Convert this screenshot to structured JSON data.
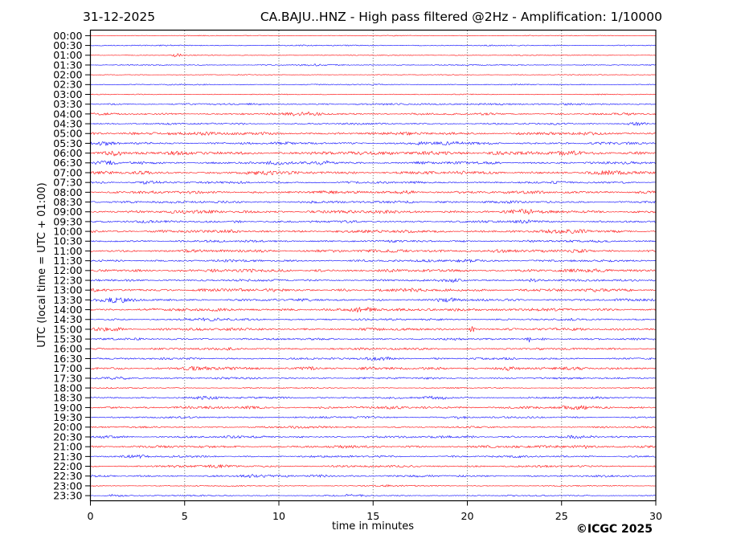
{
  "header": {
    "date": "31-12-2025",
    "title": "CA.BAJU..HNZ - High pass filtered @2Hz - Amplification: 1/10000"
  },
  "footer": {
    "copyright": "©ICGC 2025"
  },
  "chart_data": {
    "type": "line",
    "variant": "helicorder-seismogram-day-plot",
    "title": "CA.BAJU..HNZ - High pass filtered @2Hz - Amplification: 1/10000",
    "date": "31-12-2025",
    "xlabel": "time in minutes",
    "ylabel": "UTC (local time = UTC + 01:00)",
    "xlim": [
      0,
      30
    ],
    "x_ticks": [
      0,
      5,
      10,
      15,
      20,
      25,
      30
    ],
    "row_interval_minutes": 30,
    "grid": {
      "vertical_dotted_at": [
        5,
        10,
        15,
        20,
        25
      ],
      "color": "#555555"
    },
    "trace_colors": {
      "red": "#ff0000",
      "blue": "#0000ff"
    },
    "rows": [
      {
        "label": "00:00",
        "color": "red",
        "amp": 0.35,
        "events": []
      },
      {
        "label": "00:30",
        "color": "blue",
        "amp": 0.5,
        "events": []
      },
      {
        "label": "01:00",
        "color": "red",
        "amp": 0.4,
        "events": [
          {
            "t": 4.6,
            "a": 2.2,
            "w": 0.2
          }
        ]
      },
      {
        "label": "01:30",
        "color": "blue",
        "amp": 0.5,
        "events": [
          {
            "t": 11.8,
            "a": 1.4,
            "w": 0.4
          }
        ]
      },
      {
        "label": "02:00",
        "color": "red",
        "amp": 0.35,
        "events": []
      },
      {
        "label": "02:30",
        "color": "blue",
        "amp": 0.5,
        "events": []
      },
      {
        "label": "03:00",
        "color": "red",
        "amp": 0.4,
        "events": []
      },
      {
        "label": "03:30",
        "color": "blue",
        "amp": 0.8,
        "events": [
          {
            "t": 21.0,
            "a": 1.6,
            "w": 0.6
          }
        ]
      },
      {
        "label": "04:00",
        "color": "red",
        "amp": 0.9,
        "events": [
          {
            "t": 11.4,
            "a": 1.8,
            "w": 0.7
          }
        ]
      },
      {
        "label": "04:30",
        "color": "blue",
        "amp": 0.8,
        "events": [
          {
            "t": 29.0,
            "a": 2.6,
            "w": 0.35
          }
        ]
      },
      {
        "label": "05:00",
        "color": "red",
        "amp": 1.3,
        "events": [
          {
            "t": 4.0,
            "a": 1.2,
            "w": 1.2
          }
        ]
      },
      {
        "label": "05:30",
        "color": "blue",
        "amp": 1.1,
        "events": [
          {
            "t": 0.8,
            "a": 1.8,
            "w": 0.4
          },
          {
            "t": 18.5,
            "a": 1.6,
            "w": 0.8
          }
        ]
      },
      {
        "label": "06:00",
        "color": "red",
        "amp": 1.5,
        "events": [
          {
            "t": 1.2,
            "a": 2.2,
            "w": 0.5
          },
          {
            "t": 18.0,
            "a": 1.6,
            "w": 1.0
          },
          {
            "t": 25.8,
            "a": 1.6,
            "w": 0.8
          }
        ]
      },
      {
        "label": "06:30",
        "color": "blue",
        "amp": 1.2,
        "events": [
          {
            "t": 0.9,
            "a": 2.0,
            "w": 0.3
          },
          {
            "t": 12.6,
            "a": 2.4,
            "w": 0.5
          },
          {
            "t": 9.6,
            "a": 1.4,
            "w": 0.4
          }
        ]
      },
      {
        "label": "07:00",
        "color": "red",
        "amp": 1.4,
        "events": [
          {
            "t": 9.0,
            "a": 1.5,
            "w": 0.8
          },
          {
            "t": 28.0,
            "a": 1.6,
            "w": 0.6
          }
        ]
      },
      {
        "label": "07:30",
        "color": "blue",
        "amp": 1.0,
        "events": [
          {
            "t": 3.1,
            "a": 1.8,
            "w": 0.5
          }
        ]
      },
      {
        "label": "08:00",
        "color": "red",
        "amp": 1.3,
        "events": [
          {
            "t": 16.9,
            "a": 2.8,
            "w": 0.25
          }
        ]
      },
      {
        "label": "08:30",
        "color": "blue",
        "amp": 1.0,
        "events": [
          {
            "t": 7.0,
            "a": 1.5,
            "w": 0.5
          },
          {
            "t": 16.5,
            "a": 1.6,
            "w": 0.5
          }
        ]
      },
      {
        "label": "09:00",
        "color": "red",
        "amp": 1.4,
        "events": [
          {
            "t": 23.2,
            "a": 1.4,
            "w": 0.8
          }
        ]
      },
      {
        "label": "09:30",
        "color": "blue",
        "amp": 1.0,
        "events": [
          {
            "t": 7.8,
            "a": 2.2,
            "w": 0.15
          },
          {
            "t": 23.0,
            "a": 1.4,
            "w": 0.6
          }
        ]
      },
      {
        "label": "10:00",
        "color": "red",
        "amp": 1.3,
        "events": [
          {
            "t": 25.5,
            "a": 1.8,
            "w": 0.6
          }
        ]
      },
      {
        "label": "10:30",
        "color": "blue",
        "amp": 1.0,
        "events": []
      },
      {
        "label": "11:00",
        "color": "red",
        "amp": 1.3,
        "events": [
          {
            "t": 12.5,
            "a": 1.5,
            "w": 0.5
          },
          {
            "t": 21.5,
            "a": 1.5,
            "w": 0.5
          }
        ]
      },
      {
        "label": "11:30",
        "color": "blue",
        "amp": 1.0,
        "events": [
          {
            "t": 20.0,
            "a": 1.6,
            "w": 0.6
          }
        ]
      },
      {
        "label": "12:00",
        "color": "red",
        "amp": 1.4,
        "events": []
      },
      {
        "label": "12:30",
        "color": "blue",
        "amp": 1.0,
        "events": [
          {
            "t": 23.6,
            "a": 2.6,
            "w": 0.3
          },
          {
            "t": 19.2,
            "a": 1.5,
            "w": 0.4
          }
        ]
      },
      {
        "label": "13:00",
        "color": "red",
        "amp": 1.4,
        "events": []
      },
      {
        "label": "13:30",
        "color": "blue",
        "amp": 1.1,
        "events": [
          {
            "t": 1.4,
            "a": 2.8,
            "w": 0.6
          },
          {
            "t": 19.0,
            "a": 1.8,
            "w": 0.4
          }
        ]
      },
      {
        "label": "14:00",
        "color": "red",
        "amp": 1.3,
        "events": [
          {
            "t": 14.4,
            "a": 1.8,
            "w": 0.6
          },
          {
            "t": 19.3,
            "a": 1.8,
            "w": 0.5
          }
        ]
      },
      {
        "label": "14:30",
        "color": "blue",
        "amp": 0.9,
        "events": [
          {
            "t": 6.2,
            "a": 1.8,
            "w": 0.5
          }
        ]
      },
      {
        "label": "15:00",
        "color": "red",
        "amp": 1.2,
        "events": [
          {
            "t": 0.6,
            "a": 2.0,
            "w": 0.3
          },
          {
            "t": 1.4,
            "a": 2.6,
            "w": 0.2
          },
          {
            "t": 20.3,
            "a": 4.5,
            "w": 0.12
          }
        ]
      },
      {
        "label": "15:30",
        "color": "blue",
        "amp": 0.9,
        "events": [
          {
            "t": 23.3,
            "a": 4.2,
            "w": 0.1
          },
          {
            "t": 24.0,
            "a": 3.8,
            "w": 0.1
          }
        ]
      },
      {
        "label": "16:00",
        "color": "red",
        "amp": 1.0,
        "events": []
      },
      {
        "label": "16:30",
        "color": "blue",
        "amp": 0.9,
        "events": [
          {
            "t": 15.6,
            "a": 2.8,
            "w": 0.5
          }
        ]
      },
      {
        "label": "17:00",
        "color": "red",
        "amp": 1.2,
        "events": [
          {
            "t": 5.7,
            "a": 2.4,
            "w": 0.5
          },
          {
            "t": 11.6,
            "a": 2.0,
            "w": 0.4
          },
          {
            "t": 22.2,
            "a": 1.8,
            "w": 0.5
          }
        ]
      },
      {
        "label": "17:30",
        "color": "blue",
        "amp": 0.9,
        "events": [
          {
            "t": 1.5,
            "a": 1.4,
            "w": 0.6
          }
        ]
      },
      {
        "label": "18:00",
        "color": "red",
        "amp": 0.5,
        "events": []
      },
      {
        "label": "18:30",
        "color": "blue",
        "amp": 0.9,
        "events": [
          {
            "t": 6.0,
            "a": 1.6,
            "w": 0.5
          },
          {
            "t": 18.4,
            "a": 2.2,
            "w": 0.4
          }
        ]
      },
      {
        "label": "19:00",
        "color": "red",
        "amp": 1.2,
        "events": [
          {
            "t": 25.7,
            "a": 1.8,
            "w": 0.6
          }
        ]
      },
      {
        "label": "19:30",
        "color": "blue",
        "amp": 0.8,
        "events": [
          {
            "t": 19.5,
            "a": 1.8,
            "w": 0.4
          }
        ]
      },
      {
        "label": "20:00",
        "color": "red",
        "amp": 0.8,
        "events": [
          {
            "t": 11.5,
            "a": 1.5,
            "w": 0.5
          }
        ]
      },
      {
        "label": "20:30",
        "color": "blue",
        "amp": 1.0,
        "events": [
          {
            "t": 0.8,
            "a": 1.6,
            "w": 0.4
          },
          {
            "t": 19.8,
            "a": 1.6,
            "w": 0.5
          },
          {
            "t": 26.0,
            "a": 1.6,
            "w": 0.5
          }
        ]
      },
      {
        "label": "21:00",
        "color": "red",
        "amp": 1.1,
        "events": [
          {
            "t": 26.2,
            "a": 1.8,
            "w": 0.6
          },
          {
            "t": 29.5,
            "a": 1.6,
            "w": 0.4
          }
        ]
      },
      {
        "label": "21:30",
        "color": "blue",
        "amp": 0.9,
        "events": [
          {
            "t": 2.3,
            "a": 1.8,
            "w": 0.4
          }
        ]
      },
      {
        "label": "22:00",
        "color": "red",
        "amp": 0.9,
        "events": [
          {
            "t": 4.6,
            "a": 1.6,
            "w": 0.4
          },
          {
            "t": 6.9,
            "a": 2.0,
            "w": 0.3
          }
        ]
      },
      {
        "label": "22:30",
        "color": "blue",
        "amp": 0.9,
        "events": [
          {
            "t": 8.7,
            "a": 1.4,
            "w": 0.5
          },
          {
            "t": 12.2,
            "a": 1.5,
            "w": 0.5
          }
        ]
      },
      {
        "label": "23:00",
        "color": "red",
        "amp": 0.5,
        "events": [
          {
            "t": 16.0,
            "a": 1.2,
            "w": 0.6
          }
        ]
      },
      {
        "label": "23:30",
        "color": "blue",
        "amp": 0.6,
        "events": [
          {
            "t": 1.3,
            "a": 2.2,
            "w": 0.3
          },
          {
            "t": 13.9,
            "a": 1.8,
            "w": 0.4
          }
        ]
      }
    ]
  }
}
